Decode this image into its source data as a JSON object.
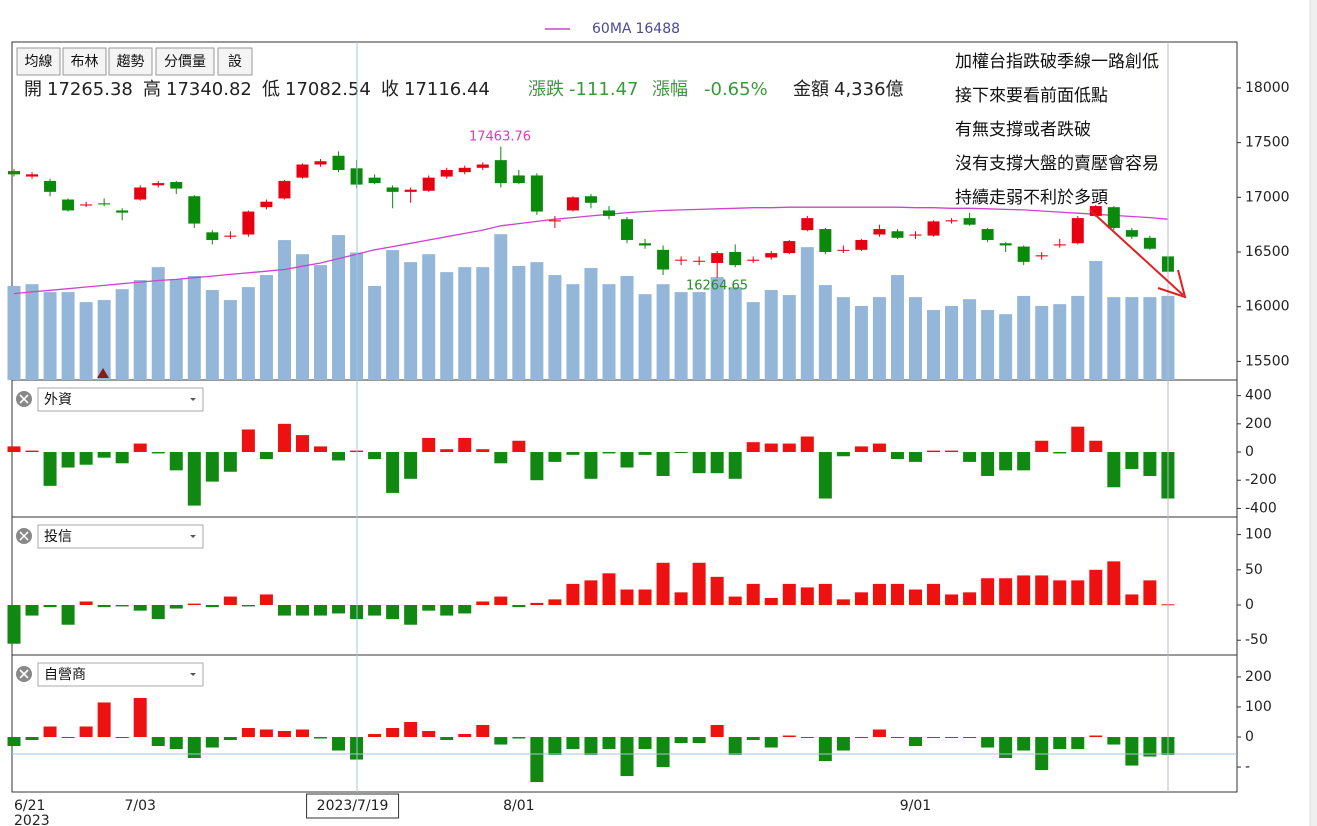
{
  "chart_data": [
    {
      "type": "candlestick",
      "toolbar": [
        "均線",
        "布林",
        "趨勢",
        "分價量",
        "設"
      ],
      "legend": {
        "name": "60MA",
        "value": 16488
      },
      "quote": [
        {
          "label": "開",
          "value": "17265.38",
          "color": "#222"
        },
        {
          "label": "高",
          "value": "17340.82",
          "color": "#222"
        },
        {
          "label": "低",
          "value": "17082.54",
          "color": "#222"
        },
        {
          "label": "收",
          "value": "17116.44",
          "color": "#222"
        },
        {
          "label": "漲跌",
          "value": "-111.47",
          "color": "#3a9a3a"
        },
        {
          "label": "漲幅",
          "value": "-0.65%",
          "color": "#3a9a3a"
        },
        {
          "label": "金額",
          "value": "4,336億",
          "color": "#222"
        }
      ],
      "annotations": [
        "加權台指跌破季線一路創低",
        "接下來要看前面低點",
        "有無支撐或者跌破",
        "沒有支撐大盤的賣壓會容易",
        "持續走弱不利於多頭"
      ],
      "peak_label": "17463.76",
      "trough_label": "16264.65",
      "year_label": "2023",
      "categories": [
        "6/21",
        null,
        null,
        null,
        null,
        null,
        null,
        "7/03",
        null,
        null,
        null,
        null,
        null,
        null,
        null,
        null,
        null,
        null,
        null,
        "2023/7/19",
        null,
        null,
        null,
        null,
        null,
        null,
        null,
        null,
        "8/01",
        null,
        null,
        null,
        null,
        null,
        null,
        null,
        null,
        null,
        null,
        null,
        null,
        null,
        null,
        null,
        null,
        null,
        null,
        null,
        null,
        null,
        "9/01",
        null,
        null,
        null,
        null,
        null,
        null,
        null,
        null,
        null,
        null,
        null,
        null,
        null,
        null
      ],
      "ohlc": [
        [
          17240,
          17260,
          17190,
          17210
        ],
        [
          17190,
          17230,
          17170,
          17210
        ],
        [
          17150,
          17170,
          17010,
          17050
        ],
        [
          16980,
          16990,
          16870,
          16880
        ],
        [
          16925,
          16960,
          16910,
          16935
        ],
        [
          16945,
          16990,
          16920,
          16935
        ],
        [
          16880,
          16900,
          16790,
          16860
        ],
        [
          16980,
          17110,
          16970,
          17090
        ],
        [
          17110,
          17150,
          17090,
          17130
        ],
        [
          17140,
          17150,
          17030,
          17080
        ],
        [
          17010,
          17020,
          16720,
          16760
        ],
        [
          16680,
          16700,
          16570,
          16610
        ],
        [
          16640,
          16690,
          16620,
          16650
        ],
        [
          16660,
          16880,
          16640,
          16870
        ],
        [
          16910,
          16980,
          16890,
          16960
        ],
        [
          16990,
          17160,
          16980,
          17150
        ],
        [
          17180,
          17310,
          17170,
          17300
        ],
        [
          17300,
          17350,
          17280,
          17330
        ],
        [
          17380,
          17420,
          17230,
          17250
        ],
        [
          17265.38,
          17340.82,
          17082.54,
          17116.44
        ],
        [
          17180,
          17210,
          17120,
          17130
        ],
        [
          17090,
          17110,
          16900,
          17050
        ],
        [
          17050,
          17090,
          16950,
          17070
        ],
        [
          17060,
          17200,
          17050,
          17180
        ],
        [
          17190,
          17270,
          17170,
          17250
        ],
        [
          17230,
          17290,
          17210,
          17270
        ],
        [
          17270,
          17320,
          17250,
          17300
        ],
        [
          17340,
          17463.76,
          17090,
          17130
        ],
        [
          17200,
          17250,
          17120,
          17130
        ],
        [
          17200,
          17220,
          16840,
          16870
        ],
        [
          16780,
          16830,
          16720,
          16790
        ],
        [
          16880,
          17010,
          16870,
          17000
        ],
        [
          17010,
          17030,
          16900,
          16950
        ],
        [
          16880,
          16920,
          16800,
          16830
        ],
        [
          16800,
          16820,
          16580,
          16610
        ],
        [
          16580,
          16620,
          16530,
          16560
        ],
        [
          16520,
          16560,
          16290,
          16340
        ],
        [
          16430,
          16460,
          16380,
          16430
        ],
        [
          16420,
          16460,
          16380,
          16420
        ],
        [
          16400,
          16510,
          16264.65,
          16490
        ],
        [
          16500,
          16570,
          16360,
          16380
        ],
        [
          16420,
          16460,
          16400,
          16430
        ],
        [
          16450,
          16510,
          16430,
          16490
        ],
        [
          16490,
          16610,
          16480,
          16600
        ],
        [
          16700,
          16830,
          16690,
          16810
        ],
        [
          16710,
          16720,
          16480,
          16500
        ],
        [
          16520,
          16560,
          16490,
          16520
        ],
        [
          16520,
          16620,
          16510,
          16610
        ],
        [
          16660,
          16750,
          16640,
          16710
        ],
        [
          16690,
          16710,
          16620,
          16630
        ],
        [
          16650,
          16690,
          16620,
          16660
        ],
        [
          16650,
          16790,
          16640,
          16780
        ],
        [
          16780,
          16810,
          16760,
          16790
        ],
        [
          16810,
          16860,
          16740,
          16750
        ],
        [
          16710,
          16720,
          16590,
          16610
        ],
        [
          16580,
          16590,
          16500,
          16560
        ],
        [
          16550,
          16560,
          16380,
          16410
        ],
        [
          16460,
          16500,
          16430,
          16470
        ],
        [
          16560,
          16620,
          16540,
          16570
        ],
        [
          16580,
          16830,
          16570,
          16810
        ],
        [
          16830,
          16930,
          16820,
          16920
        ],
        [
          16910,
          16920,
          16700,
          16720
        ],
        [
          16700,
          16720,
          16620,
          16640
        ],
        [
          16630,
          16650,
          16520,
          16530
        ],
        [
          16460,
          16470,
          16310,
          16320
        ]
      ],
      "volume": [
        3200,
        3260,
        2990,
        2990,
        2650,
        2720,
        3090,
        3400,
        3840,
        3430,
        3540,
        3060,
        2720,
        3160,
        3570,
        4760,
        4280,
        3910,
        4930,
        4336,
        3200,
        4420,
        4010,
        4280,
        3670,
        3840,
        3840,
        4960,
        3880,
        4010,
        3570,
        3260,
        3810,
        3260,
        3540,
        2920,
        3260,
        2990,
        2990,
        3500,
        3160,
        2650,
        3060,
        2890,
        4520,
        3230,
        2820,
        2520,
        2820,
        3570,
        2820,
        2380,
        2520,
        2750,
        2380,
        2240,
        2860,
        2520,
        2580,
        2860,
        4050,
        2820,
        2820,
        2820,
        2860
      ],
      "ma": [
        16120,
        16135,
        16150,
        16165,
        16180,
        16195,
        16210,
        16225,
        16240,
        16250,
        16265,
        16280,
        16295,
        16310,
        16325,
        16340,
        16370,
        16400,
        16440,
        16480,
        16520,
        16550,
        16580,
        16610,
        16640,
        16670,
        16700,
        16740,
        16760,
        16780,
        16800,
        16815,
        16830,
        16845,
        16860,
        16870,
        16880,
        16885,
        16890,
        16895,
        16900,
        16905,
        16905,
        16910,
        16910,
        16910,
        16910,
        16910,
        16910,
        16910,
        16905,
        16905,
        16900,
        16900,
        16895,
        16890,
        16885,
        16875,
        16865,
        16855,
        16845,
        16835,
        16825,
        16815,
        16800
      ],
      "ylim": [
        15330,
        18420
      ],
      "yticks": [
        18000,
        17500,
        17000,
        16500,
        16000,
        15500
      ],
      "vlim": [
        0,
        11500
      ],
      "up_color": "#e60012",
      "down_color": "#0a8a0a",
      "volume_color": "#94b6d8",
      "ma_color": "#cc44cc"
    },
    {
      "type": "bar",
      "title": "外資",
      "values": [
        40,
        10,
        -240,
        -110,
        -90,
        -40,
        -80,
        60,
        -10,
        -130,
        -380,
        -210,
        -140,
        160,
        -50,
        200,
        120,
        40,
        -60,
        10,
        -50,
        -290,
        -190,
        100,
        20,
        100,
        20,
        -80,
        80,
        -200,
        -70,
        -20,
        -190,
        -10,
        -110,
        -20,
        -170,
        -5,
        -150,
        -150,
        -190,
        70,
        60,
        60,
        110,
        -330,
        -30,
        40,
        60,
        -50,
        -70,
        10,
        10,
        -70,
        -170,
        -130,
        -130,
        80,
        -10,
        180,
        80,
        -250,
        -120,
        -170,
        -330
      ],
      "ylim": [
        -461,
        511
      ],
      "yticks": [
        400,
        200,
        0,
        -200,
        -400
      ]
    },
    {
      "type": "bar",
      "title": "投信",
      "values": [
        -55,
        -15,
        -3,
        -28,
        5,
        -3,
        -2,
        -8,
        -20,
        -5,
        2,
        -3,
        12,
        -2,
        15,
        -15,
        -15,
        -15,
        -12,
        -20,
        -15,
        -20,
        -28,
        -8,
        -15,
        -12,
        5,
        12,
        -3,
        3,
        8,
        30,
        35,
        45,
        22,
        22,
        60,
        18,
        60,
        40,
        12,
        30,
        10,
        30,
        25,
        30,
        8,
        18,
        30,
        30,
        22,
        30,
        15,
        18,
        38,
        38,
        42,
        42,
        35,
        35,
        50,
        62,
        15,
        35,
        1
      ],
      "ylim": [
        -71,
        125
      ],
      "yticks": [
        100,
        50,
        0,
        -50
      ]
    },
    {
      "type": "bar",
      "title": "自營商",
      "values": [
        -30,
        -10,
        35,
        0,
        35,
        115,
        0,
        130,
        -30,
        -40,
        -70,
        -35,
        -10,
        30,
        25,
        20,
        25,
        -5,
        -45,
        -75,
        10,
        30,
        50,
        20,
        -10,
        10,
        40,
        -25,
        -5,
        -150,
        -60,
        -40,
        -60,
        -40,
        -130,
        -40,
        -100,
        -20,
        -20,
        40,
        -60,
        -10,
        -35,
        5,
        -3,
        -80,
        -45,
        -3,
        25,
        -3,
        -30,
        -3,
        -3,
        -3,
        -35,
        -70,
        -45,
        -110,
        -40,
        -40,
        5,
        -25,
        -95,
        -65,
        -60
      ],
      "ylim": [
        -183,
        273
      ],
      "yticks": [
        200,
        100,
        0,
        {
          "value": -100,
          "label": "-"
        }
      ]
    }
  ]
}
